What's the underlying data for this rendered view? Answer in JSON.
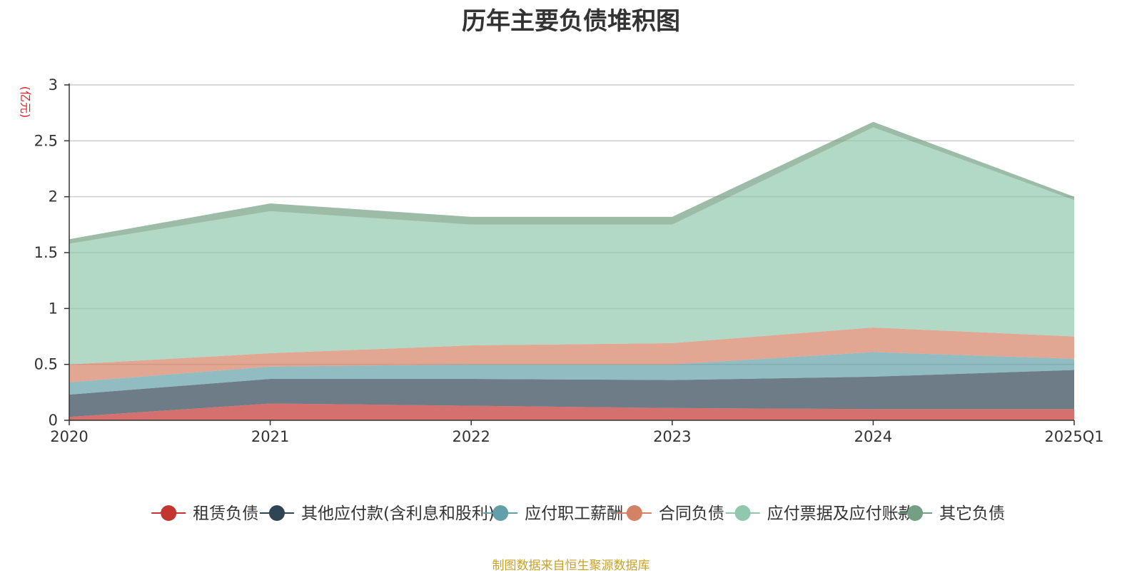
{
  "chart_data": {
    "type": "area",
    "stacked": true,
    "title": "历年主要负债堆积图",
    "unit_label": "(亿元)",
    "categories": [
      "2020",
      "2021",
      "2022",
      "2023",
      "2024",
      "2025Q1"
    ],
    "ylim": [
      0,
      3
    ],
    "yticks": [
      0,
      0.5,
      1,
      1.5,
      2,
      2.5,
      3
    ],
    "ytick_labels": [
      "0",
      "0.5",
      "1",
      "1.5",
      "2",
      "2.5",
      "3"
    ],
    "grid": true,
    "legend_position": "bottom",
    "series": [
      {
        "name": "租赁负债",
        "color": "#c23531",
        "values": [
          0.03,
          0.15,
          0.13,
          0.11,
          0.1,
          0.1
        ]
      },
      {
        "name": "其他应付款(含利息和股利)",
        "color": "#2f4554",
        "values": [
          0.2,
          0.22,
          0.24,
          0.25,
          0.29,
          0.35
        ]
      },
      {
        "name": "应付职工薪酬",
        "color": "#61a0a8",
        "values": [
          0.11,
          0.11,
          0.13,
          0.14,
          0.22,
          0.1
        ]
      },
      {
        "name": "合同负债",
        "color": "#d48265",
        "values": [
          0.16,
          0.12,
          0.17,
          0.19,
          0.22,
          0.2
        ]
      },
      {
        "name": "应付票据及应付账款",
        "color": "#91c7ae",
        "values": [
          1.08,
          1.27,
          1.08,
          1.06,
          1.79,
          1.22
        ]
      },
      {
        "name": "其它负债",
        "color": "#749f83",
        "values": [
          0.04,
          0.07,
          0.07,
          0.07,
          0.05,
          0.03
        ]
      }
    ]
  },
  "source_note": "制图数据来自恒生聚源数据库"
}
